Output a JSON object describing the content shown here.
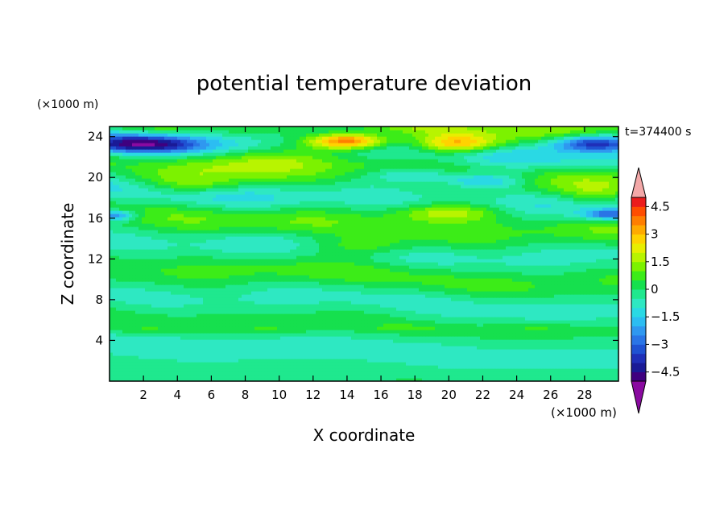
{
  "chart_data": {
    "type": "heatmap",
    "title": "potential temperature deviation",
    "xlabel": "X coordinate",
    "ylabel": "Z coordinate",
    "x_unit": "(×1000 m)",
    "y_unit": "(×1000 m)",
    "time_label": "t=374400 s",
    "xlim": [
      0,
      30
    ],
    "ylim": [
      0,
      25
    ],
    "x_ticks": [
      2,
      4,
      6,
      8,
      10,
      12,
      14,
      16,
      18,
      20,
      22,
      24,
      26,
      28
    ],
    "y_ticks": [
      4,
      8,
      12,
      16,
      20,
      24
    ],
    "colorbar": {
      "min": -5,
      "max": 5,
      "step": 0.5,
      "tick_values": [
        4.5,
        3,
        1.5,
        0,
        -1.5,
        -3,
        -4.5
      ],
      "tick_labels": [
        "4.5",
        "3",
        "1.5",
        "0",
        "−1.5",
        "−3",
        "−4.5"
      ],
      "colors": [
        "#3f007f",
        "#1a1a96",
        "#1f2fb8",
        "#1f52d2",
        "#2a75e6",
        "#2f98f0",
        "#2cbdf2",
        "#2ad9e4",
        "#2ee8c2",
        "#1fe88e",
        "#16e04e",
        "#3cec18",
        "#7cf200",
        "#b8f400",
        "#e8ee00",
        "#ffd200",
        "#ffaa00",
        "#ff7e00",
        "#ff4d00",
        "#ec1c1c"
      ],
      "over_color": "#f3a8a8",
      "under_color": "#8a0aa0"
    },
    "grid": false
  }
}
